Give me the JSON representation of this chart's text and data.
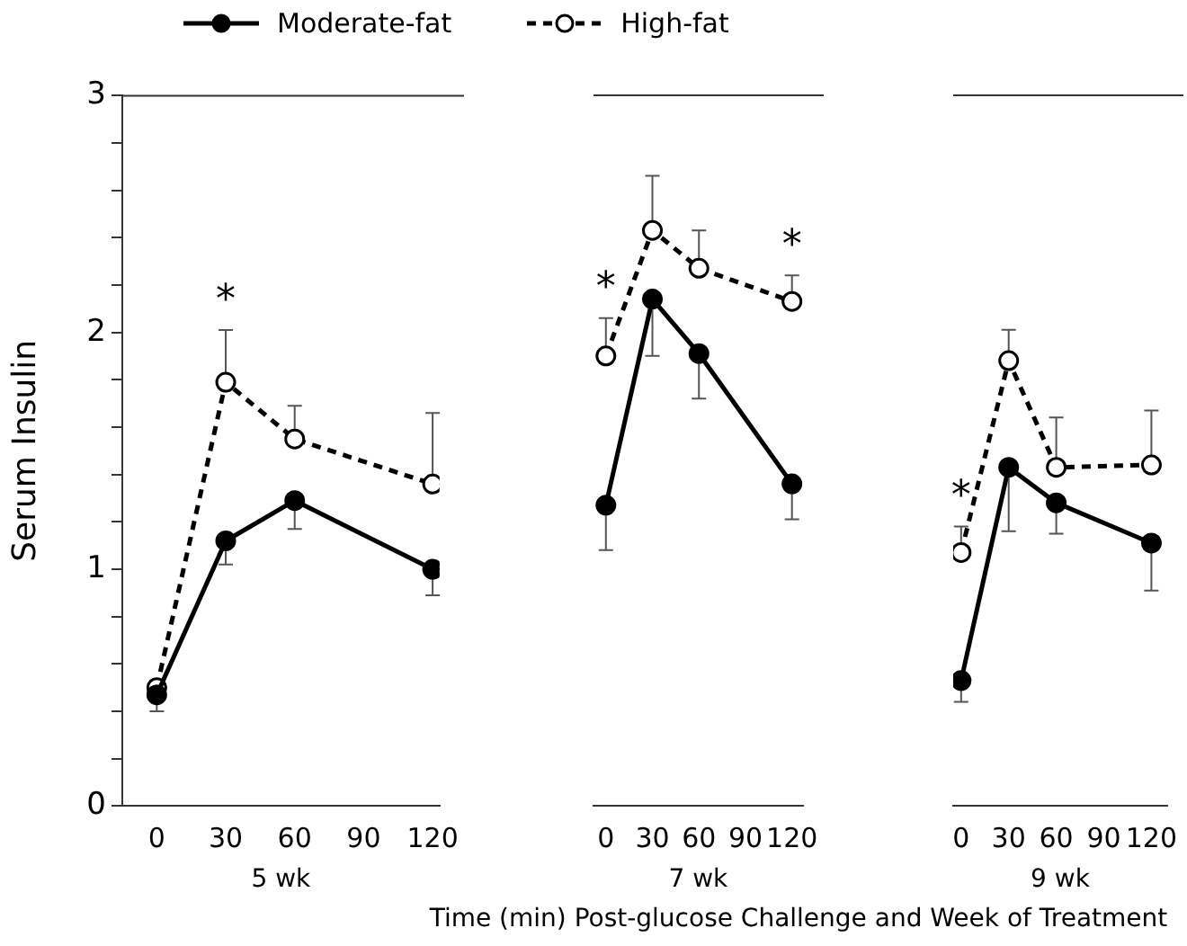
{
  "chart_data": [
    {
      "type": "line",
      "xlabel": "5 wk",
      "ylabel": "Serum Insulin",
      "x": [
        0,
        30,
        60,
        120
      ],
      "xlim": [
        -15,
        123
      ],
      "xticks": [
        0,
        30,
        60,
        90,
        120
      ],
      "ylim": [
        0,
        3
      ],
      "yticks": [
        0,
        {
          "value": 0.2,
          "label": null
        },
        {
          "value": 0.4,
          "label": null
        },
        {
          "value": 0.6,
          "label": null
        },
        {
          "value": 0.8,
          "label": null
        },
        1,
        {
          "value": 1.2,
          "label": null
        },
        {
          "value": 1.4,
          "label": null
        },
        {
          "value": 1.6,
          "label": null
        },
        {
          "value": 1.8,
          "label": null
        },
        2,
        {
          "value": 2.2,
          "label": null
        },
        {
          "value": 2.4,
          "label": null
        },
        {
          "value": 2.6,
          "label": null
        },
        {
          "value": 2.8,
          "label": null
        },
        3
      ],
      "grid": false,
      "legend": "top",
      "marker": "circle",
      "series": [
        {
          "name": "Moderate-fat",
          "color": "#000000",
          "line_style": "solid",
          "values": [
            0.47,
            1.12,
            1.29,
            1.0
          ],
          "errors": [
            [
              0.4,
              0.47
            ],
            [
              1.02,
              1.12
            ],
            [
              1.17,
              1.29
            ],
            [
              0.89,
              1.0
            ]
          ]
        },
        {
          "name": "High-fat",
          "color": "#000000",
          "line_style": "dashed",
          "values": [
            0.5,
            1.79,
            1.55,
            1.36
          ],
          "errors": [
            [
              0.5,
              0.53
            ],
            [
              1.79,
              2.01
            ],
            [
              1.55,
              1.69
            ],
            [
              1.36,
              1.66
            ]
          ]
        }
      ],
      "annotations": [
        {
          "text": "*",
          "x": 30,
          "y": 1.79
        },
        "Time (min) Post-glucose Challenge and Week of Treatment"
      ]
    },
    {
      "type": "line",
      "xlabel": "7 wk",
      "x": [
        0,
        30,
        60,
        120
      ],
      "xlim": [
        -8,
        127
      ],
      "xticks": [
        0,
        30,
        60,
        90,
        120
      ],
      "ylim": [
        0,
        3
      ],
      "tick_labels": "x",
      "grid": false,
      "marker": "circle",
      "series": [
        {
          "color": "#000000",
          "line_style": "solid",
          "values": [
            1.27,
            2.14,
            1.91,
            1.36
          ],
          "errors": [
            [
              1.08,
              1.27
            ],
            [
              1.9,
              2.14
            ],
            [
              1.72,
              1.91
            ],
            [
              1.21,
              1.36
            ]
          ]
        },
        {
          "color": "#000000",
          "line_style": "dashed",
          "values": [
            1.9,
            2.43,
            2.27,
            2.13
          ],
          "errors": [
            [
              1.9,
              2.06
            ],
            [
              2.43,
              2.66
            ],
            [
              2.27,
              2.43
            ],
            [
              2.13,
              2.24
            ]
          ]
        }
      ],
      "annotations": [
        {
          "text": "*",
          "x": 0,
          "y": 1.9
        },
        {
          "text": "*",
          "x": 120,
          "y": 2.13
        }
      ]
    },
    {
      "type": "line",
      "xlabel": "9 wk",
      "x": [
        0,
        30,
        60,
        120
      ],
      "xlim": [
        -5,
        130
      ],
      "xticks": [
        0,
        30,
        60,
        90,
        120
      ],
      "ylim": [
        0,
        3
      ],
      "tick_labels": "x",
      "grid": false,
      "marker": "circle",
      "series": [
        {
          "color": "#000000",
          "line_style": "solid",
          "values": [
            0.53,
            1.43,
            1.28,
            1.11
          ],
          "errors": [
            [
              0.44,
              0.53
            ],
            [
              1.16,
              1.43
            ],
            [
              1.15,
              1.28
            ],
            [
              0.91,
              1.11
            ]
          ]
        },
        {
          "color": "#000000",
          "line_style": "dashed",
          "values": [
            1.07,
            1.88,
            1.43,
            1.44
          ],
          "errors": [
            [
              1.07,
              1.18
            ],
            [
              1.88,
              2.01
            ],
            [
              1.43,
              1.64
            ],
            [
              1.44,
              1.67
            ]
          ]
        }
      ],
      "annotations": [
        {
          "text": "*",
          "x": 0,
          "y": 1.07
        }
      ]
    }
  ]
}
